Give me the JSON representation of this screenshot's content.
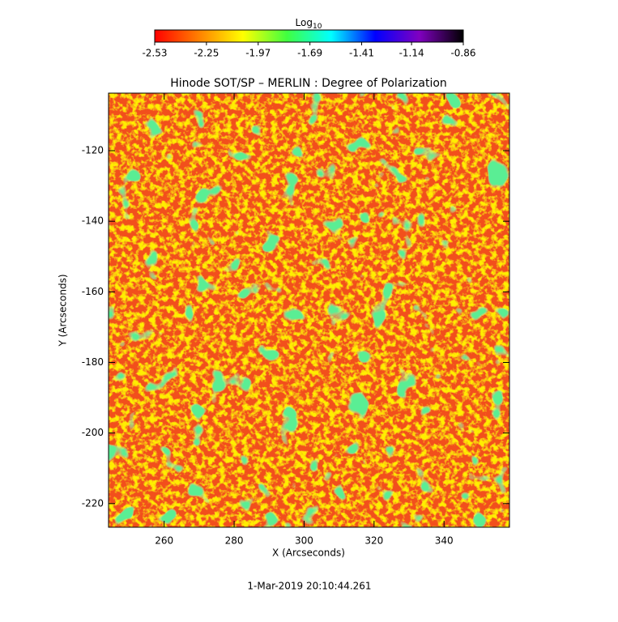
{
  "chart_data": {
    "type": "heatmap",
    "title": "Hinode SOT/SP – MERLIN : Degree of Polarization",
    "xlabel": "X (Arcseconds)",
    "ylabel": "Y (Arcseconds)",
    "xlim": [
      244.1,
      358.7
    ],
    "ylim": [
      -226.7,
      -103.7
    ],
    "xticks": [
      260,
      280,
      300,
      320,
      340
    ],
    "yticks": [
      -220,
      -200,
      -180,
      -160,
      -140,
      -120
    ],
    "colorbar": {
      "title": "Log",
      "title_sub": "10",
      "lim": [
        -2.53,
        -0.86
      ],
      "ticks": [
        -2.53,
        -2.25,
        -1.97,
        -1.69,
        -1.41,
        -1.14,
        -0.86
      ],
      "colors": [
        "#ff0000",
        "#ff8000",
        "#ffff00",
        "#40ff40",
        "#00ffff",
        "#0000ff",
        "#8000c0",
        "#000000"
      ]
    },
    "date": "1-Mar-2019 20:10:44.261"
  }
}
